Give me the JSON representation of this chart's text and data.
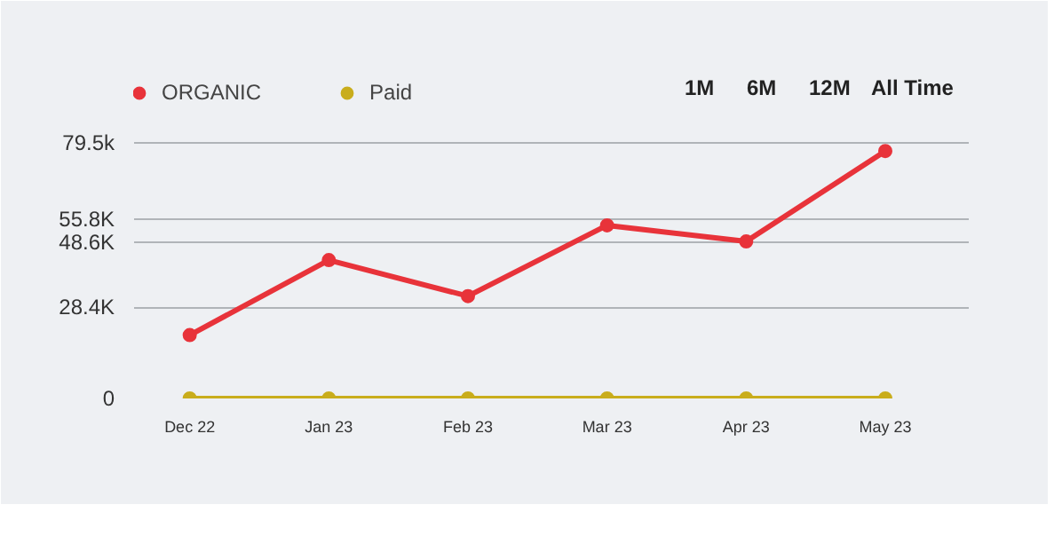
{
  "chart_data": {
    "type": "line",
    "categories": [
      "Dec 22",
      "Jan 23",
      "Feb 23",
      "Mar 23",
      "Apr 23",
      "May 23"
    ],
    "series": [
      {
        "name": "ORGANIC",
        "color": "#e8333a",
        "values": [
          19700,
          43000,
          31800,
          53800,
          48800,
          76900
        ]
      },
      {
        "name": "Paid",
        "color": "#c9ad1c",
        "values": [
          0,
          0,
          0,
          0,
          0,
          0
        ]
      }
    ],
    "ylim": [
      0,
      107000
    ],
    "yticks": [
      0,
      {
        "value": 28400,
        "label": "28.4K"
      },
      {
        "value": 48600,
        "label": "48.6K"
      },
      {
        "value": 55800,
        "label": "55.8K"
      },
      {
        "value": 79500,
        "label": "79.5k"
      }
    ],
    "grid": "y",
    "legend": "top left",
    "marker": "circle",
    "line_style": "solid",
    "annotations": [
      "1M",
      "6M",
      "12M",
      "All Time"
    ]
  }
}
